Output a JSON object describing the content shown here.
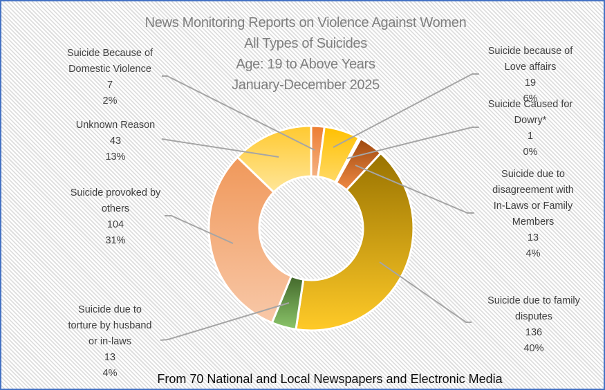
{
  "chart_data": {
    "type": "pie",
    "subtype": "donut",
    "title": "News Monitoring Reports on Violence Against Women",
    "subtitle_lines": [
      "All Types of Suicides",
      "Age: 19 to Above Years",
      "January-December 2025"
    ],
    "footer": "From 70 National and Local Newspapers and Electronic Media",
    "total": 336,
    "start_angle_deg": 0,
    "direction": "clockwise",
    "categories": [
      "Suicide Because of Domestic Violence",
      "Suicide because of Love affairs",
      "Suicide Caused for Dowry*",
      "Suicide due to disagreement with In-Laws or Family Members",
      "Suicide due to family disputes",
      "Suicide due to torture by husband or in-laws",
      "Suicide provoked by others",
      "Unknown Reason"
    ],
    "values": [
      7,
      19,
      1,
      13,
      136,
      13,
      104,
      43
    ],
    "percent_labels": [
      "2%",
      "6%",
      "0%",
      "4%",
      "40%",
      "4%",
      "31%",
      "13%"
    ],
    "colors_top": [
      "#ED7D31",
      "#FFC000",
      "#9E480E",
      "#9E480E",
      "#997300",
      "#43682B",
      "#F0985A",
      "#FFC930"
    ],
    "colors_bottom": [
      "#F4B183",
      "#FFD966",
      "#ED7D31",
      "#F08A44",
      "#FFCA28",
      "#8BC56A",
      "#F8C8A8",
      "#FFE699"
    ]
  },
  "header": {
    "title_lines": [
      "News Monitoring Reports on Violence Against Women",
      "All Types of Suicides",
      "Age: 19 to Above Years",
      "January-December 2025"
    ]
  },
  "labels": {
    "domestic": {
      "lines": [
        "Suicide Because of",
        "Domestic Violence"
      ],
      "value": "7",
      "percent": "2%"
    },
    "love": {
      "lines": [
        "Suicide because of",
        "Love affairs"
      ],
      "value": "19",
      "percent": "6%"
    },
    "dowry": {
      "lines": [
        "Suicide Caused for",
        "Dowry*"
      ],
      "value": "1",
      "percent": "0%"
    },
    "inlaws": {
      "lines": [
        "Suicide due to",
        "disagreement with",
        "In-Laws or Family",
        "Members"
      ],
      "value": "13",
      "percent": "4%"
    },
    "family": {
      "lines": [
        "Suicide due to family",
        "disputes"
      ],
      "value": "136",
      "percent": "40%"
    },
    "torture": {
      "lines": [
        "Suicide due to",
        "torture by husband",
        "or in-laws"
      ],
      "value": "13",
      "percent": "4%"
    },
    "provoked": {
      "lines": [
        "Suicide provoked by",
        "others"
      ],
      "value": "104",
      "percent": "31%"
    },
    "unknown": {
      "lines": [
        "Unknown Reason"
      ],
      "value": "43",
      "percent": "13%"
    }
  },
  "footer": {
    "text": "From 70 National and Local Newspapers and Electronic Media"
  },
  "style": {
    "border_color": "#4472C4",
    "leader_color": "#A5A5A5"
  }
}
